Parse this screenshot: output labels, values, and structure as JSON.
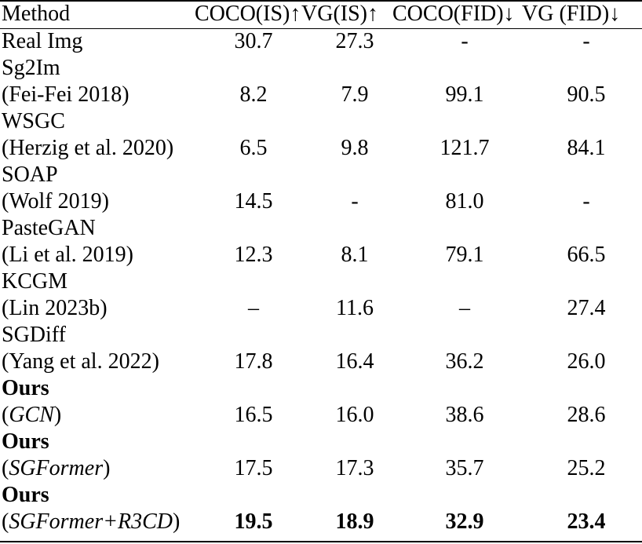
{
  "table": {
    "headers": [
      "Method",
      "COCO(IS)↑",
      "VG(IS)↑",
      "COCO(FID)↓",
      "VG (FID)↓"
    ],
    "rows": [
      {
        "line1": "Real Img",
        "line2": "",
        "vals": [
          "30.7",
          "27.3",
          "-",
          "-"
        ]
      },
      {
        "line1": "Sg2Im",
        "line2": "(Fei-Fei 2018)",
        "vals": [
          "8.2",
          "7.9",
          "99.1",
          "90.5"
        ]
      },
      {
        "line1": "WSGC",
        "line2": "(Herzig et al. 2020)",
        "vals": [
          "6.5",
          "9.8",
          "121.7",
          "84.1"
        ]
      },
      {
        "line1": "SOAP",
        "line2": "(Wolf 2019)",
        "vals": [
          "14.5",
          "-",
          "81.0",
          "-"
        ]
      },
      {
        "line1": "PasteGAN",
        "line2": "(Li et al. 2019)",
        "vals": [
          "12.3",
          "8.1",
          "79.1",
          "66.5"
        ]
      },
      {
        "line1": "KCGM",
        "line2": "(Lin 2023b)",
        "vals": [
          "–",
          "11.6",
          "–",
          "27.4"
        ]
      },
      {
        "line1": "SGDiff",
        "line2": "(Yang et al. 2022)",
        "vals": [
          "17.8",
          "16.4",
          "36.2",
          "26.0"
        ]
      },
      {
        "line1": "Ours",
        "line2": "(",
        "line2_it": "GCN",
        "line2_end": ")",
        "vals": [
          "16.5",
          "16.0",
          "38.6",
          "28.6"
        ]
      },
      {
        "line1": "Ours",
        "line2": "(",
        "line2_it": "SGFormer",
        "line2_end": ")",
        "vals": [
          "17.5",
          "17.3",
          "35.7",
          "25.2"
        ]
      },
      {
        "line1": "Ours",
        "line2": "(",
        "line2_it": "SGFormer+R3CD",
        "line2_end": ")",
        "vals": [
          "19.5",
          "18.9",
          "32.9",
          "23.4"
        ]
      }
    ]
  }
}
